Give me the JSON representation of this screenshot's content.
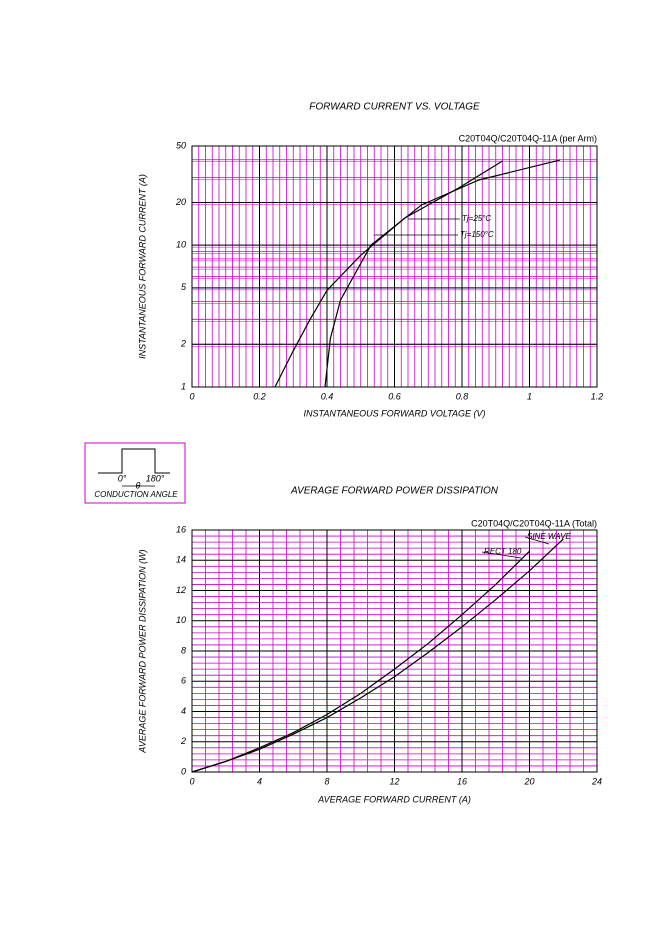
{
  "chart_data": [
    {
      "type": "line",
      "title": "FORWARD CURRENT VS. VOLTAGE",
      "subtitle": "C20T04Q/C20T04Q-11A (per Arm)",
      "x_label": "INSTANTANEOUS FORWARD VOLTAGE (V)",
      "y_label": "INSTANTANEOUS FORWARD CURRENT (A)",
      "xlim": [
        0,
        1.2
      ],
      "xticks": [
        0,
        0.2,
        0.4,
        0.6,
        0.8,
        1,
        1.2
      ],
      "ylim": [
        1,
        50
      ],
      "yticks": [
        1,
        2,
        5,
        10,
        20,
        50
      ],
      "log_y": true,
      "grid": true,
      "grid_color": "#cc00cc",
      "series": [
        {
          "name": "Tj=25°C",
          "color": "#000000",
          "x": [
            0.246,
            0.3,
            0.35,
            0.4,
            0.5,
            0.63,
            0.79,
            0.92
          ],
          "values": [
            1,
            1.8,
            3,
            4.8,
            8.5,
            15.5,
            25.3,
            39.2
          ]
        },
        {
          "name": "Tj=150°C",
          "color": "#000000",
          "x": [
            0.394,
            0.41,
            0.44,
            0.53,
            0.68,
            0.85,
            1.09
          ],
          "values": [
            1,
            2.2,
            4.1,
            10,
            19.2,
            28.8,
            39.8
          ]
        }
      ]
    },
    {
      "type": "line",
      "title": "AVERAGE FORWARD POWER DISSIPATION",
      "subtitle": "C20T04Q/C20T04Q-11A (Total)",
      "x_label": "AVERAGE FORWARD CURRENT (A)",
      "y_label": "AVERAGE FORWARD POWER DISSIPATION (W)",
      "xlim": [
        0,
        24
      ],
      "xticks": [
        0,
        4,
        8,
        12,
        16,
        20,
        24
      ],
      "ylim": [
        0,
        16
      ],
      "yticks": [
        0,
        2,
        4,
        6,
        8,
        10,
        12,
        14,
        16
      ],
      "grid": true,
      "grid_color": "#cc00cc",
      "x": [
        0,
        2,
        4,
        6,
        8,
        10,
        12,
        14,
        16,
        18,
        20,
        22
      ],
      "series": [
        {
          "name": "SINE WAVE",
          "color": "#000000",
          "values": [
            0,
            0.7,
            1.6,
            2.6,
            3.8,
            5.2,
            6.8,
            8.5,
            10.4,
            12.4,
            14.6,
            null
          ]
        },
        {
          "name": "RECT 180",
          "color": "#000000",
          "values": [
            0,
            0.7,
            1.5,
            2.5,
            3.6,
            4.9,
            6.3,
            7.9,
            9.6,
            11.4,
            13.3,
            15.4
          ]
        }
      ]
    }
  ],
  "conduction_inset": {
    "start": "0°",
    "end": "180°",
    "angle": "θ",
    "caption": "CONDUCTION ANGLE"
  }
}
